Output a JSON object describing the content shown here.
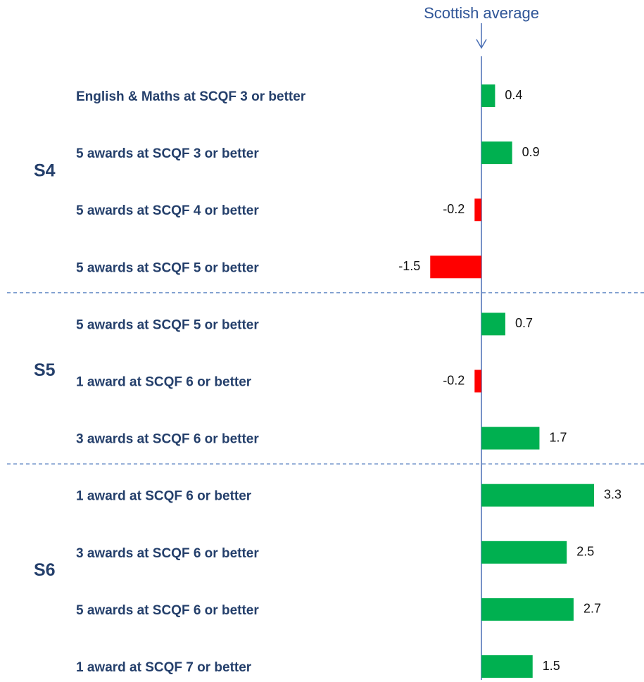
{
  "chart_data": {
    "type": "bar",
    "annotation": "Scottish average",
    "colors": {
      "positive": "#00b050",
      "negative": "#ff0000"
    },
    "groups": [
      {
        "name": "S4",
        "categories": [
          "English & Maths at SCQF 3 or better",
          "5 awards at SCQF 3 or better",
          "5 awards at SCQF 4 or better",
          "5 awards at SCQF 5 or better"
        ],
        "values": [
          0.4,
          0.9,
          -0.2,
          -1.5
        ]
      },
      {
        "name": "S5",
        "categories": [
          "5 awards at SCQF 5 or better",
          "1 award at SCQF 6 or better",
          "3 awards at SCQF 6 or better"
        ],
        "values": [
          0.7,
          -0.2,
          1.7
        ]
      },
      {
        "name": "S6",
        "categories": [
          "1 award at SCQF 6 or better",
          "3 awards at SCQF 6 or better",
          "5 awards at SCQF 6 or better",
          "1 award at SCQF 7 or better"
        ],
        "values": [
          3.3,
          2.5,
          2.7,
          1.5
        ]
      }
    ]
  }
}
